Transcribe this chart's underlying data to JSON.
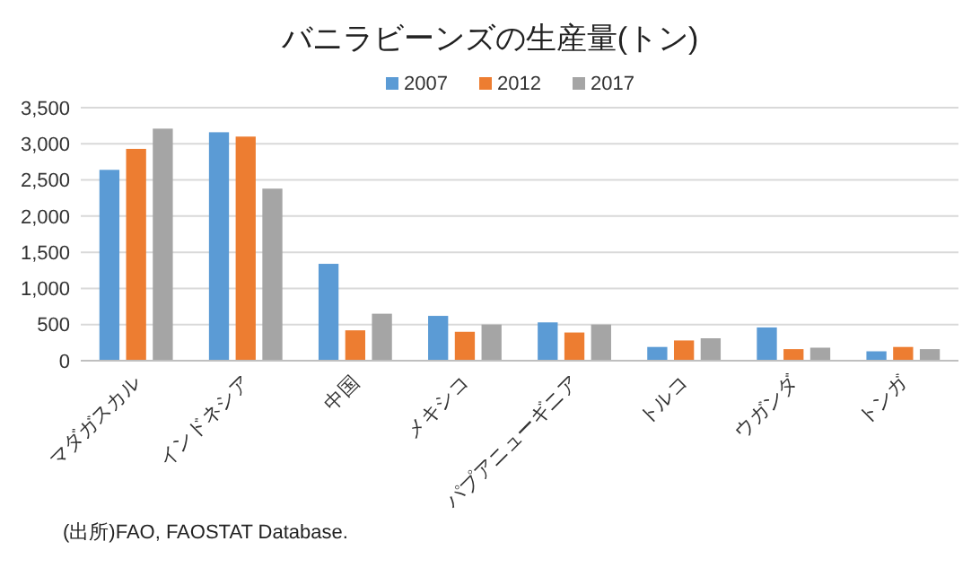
{
  "chart_data": {
    "type": "bar",
    "title": "バニラビーンズの生産量(トン)",
    "categories": [
      "マダガスカル",
      "インドネシア",
      "中国",
      "メキシコ",
      "パプアニューギニア",
      "トルコ",
      "ウガンダ",
      "トンガ"
    ],
    "series": [
      {
        "name": "2007",
        "color": "#5b9bd5",
        "values": [
          2640,
          3160,
          1340,
          620,
          530,
          190,
          460,
          130
        ]
      },
      {
        "name": "2012",
        "color": "#ed7d31",
        "values": [
          2930,
          3100,
          420,
          400,
          390,
          280,
          160,
          190
        ]
      },
      {
        "name": "2017",
        "color": "#a5a5a5",
        "values": [
          3210,
          2380,
          650,
          500,
          500,
          310,
          180,
          160
        ]
      }
    ],
    "ylim": [
      0,
      3500
    ],
    "yticks": [
      {
        "value": 0,
        "label": "0"
      },
      {
        "value": 500,
        "label": "500"
      },
      {
        "value": 1000,
        "label": "1,000"
      },
      {
        "value": 1500,
        "label": "1,500"
      },
      {
        "value": 2000,
        "label": "2,000"
      },
      {
        "value": 2500,
        "label": "2,500"
      },
      {
        "value": 3000,
        "label": "3,000"
      },
      {
        "value": 3500,
        "label": "3,500"
      }
    ],
    "grid": "y",
    "legend": "top",
    "annotations": [
      "(出所)FAO, FAOSTAT Database."
    ]
  }
}
